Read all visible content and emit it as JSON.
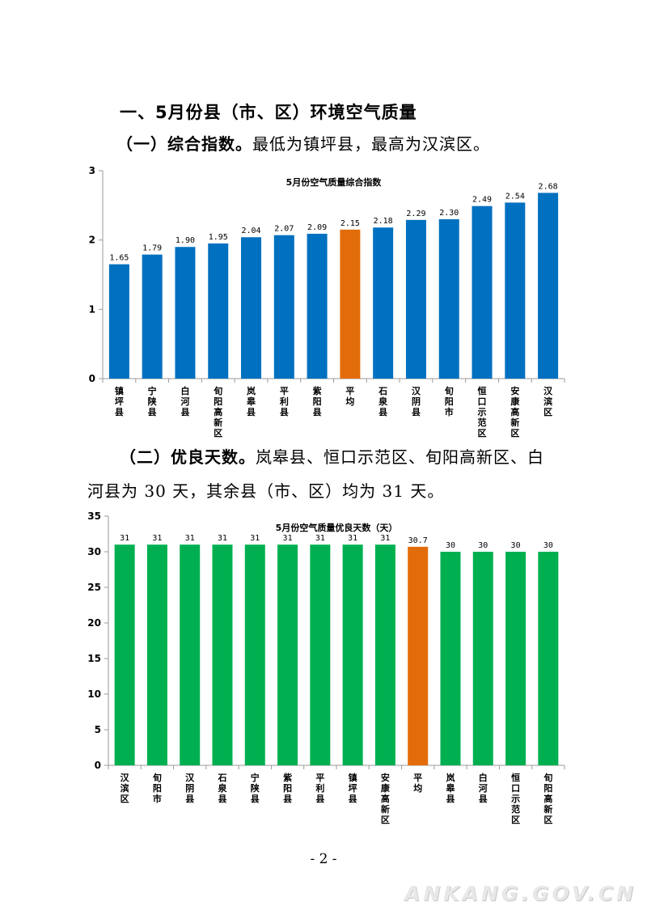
{
  "heading": "一、5月份县（市、区）环境空气质量",
  "section1": {
    "label": "（一）综合指数。",
    "text": "最低为镇坪县，最高为汉滨区。"
  },
  "section2": {
    "label": "（二）优良天数。",
    "text_line1": "岚皋县、恒口示范区、旬阳高新区、白",
    "text_line2": "河县为 30 天，其余县（市、区）均为 31 天。"
  },
  "colors": {
    "bar_blue": "#0070C0",
    "bar_green": "#00B050",
    "bar_orange": "#E36C0A",
    "axis": "#9a9a9a"
  },
  "chart_data": [
    {
      "type": "bar",
      "title": "5月份空气质量综合指数",
      "categories": [
        "镇坪县",
        "宁陕县",
        "白河县",
        "旬阳高新区",
        "岚皋县",
        "平利县",
        "紫阳县",
        "平均",
        "石泉县",
        "汉阴县",
        "旬阳市",
        "恒口示范区",
        "安康高新区",
        "汉滨区"
      ],
      "values": [
        1.65,
        1.79,
        1.9,
        1.95,
        2.04,
        2.07,
        2.09,
        2.15,
        2.18,
        2.29,
        2.3,
        2.49,
        2.54,
        2.68
      ],
      "labels": [
        "1.65",
        "1.79",
        "1.90",
        "1.95",
        "2.04",
        "2.07",
        "2.09",
        "2.15",
        "2.18",
        "2.29",
        "2.30",
        "2.49",
        "2.54",
        "2.68"
      ],
      "ylim": [
        0,
        3
      ],
      "yticks": [
        "0",
        "1",
        "2",
        "3"
      ],
      "highlight_category": "平均",
      "grid": false,
      "legend": "none"
    },
    {
      "type": "bar",
      "title": "5月份空气质量优良天数（天）",
      "categories": [
        "汉滨区",
        "旬阳市",
        "汉阴县",
        "石泉县",
        "宁陕县",
        "紫阳县",
        "平利县",
        "镇坪县",
        "安康高新区",
        "平均",
        "岚皋县",
        "白河县",
        "恒口示范区",
        "旬阳高新区"
      ],
      "values": [
        31,
        31,
        31,
        31,
        31,
        31,
        31,
        31,
        31,
        30.7,
        30,
        30,
        30,
        30
      ],
      "labels": [
        "31",
        "31",
        "31",
        "31",
        "31",
        "31",
        "31",
        "31",
        "31",
        "30.7",
        "30",
        "30",
        "30",
        "30"
      ],
      "ylim": [
        0,
        35
      ],
      "yticks": [
        "0",
        "5",
        "10",
        "15",
        "20",
        "25",
        "30",
        "35"
      ],
      "highlight_category": "平均",
      "grid": false,
      "legend": "none"
    }
  ],
  "page_number": "- 2 -",
  "watermark": "ANKANG.GOV.CN"
}
